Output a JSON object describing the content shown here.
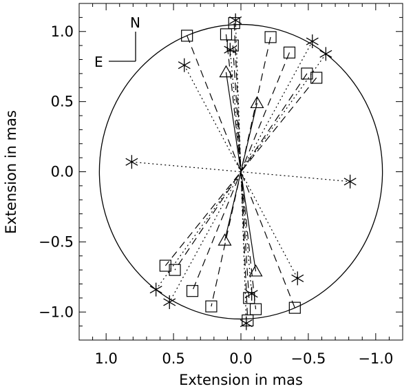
{
  "chart_data": {
    "type": "scatter",
    "xlabel": "Extension in mas",
    "ylabel": "Extension in mas",
    "xlim": [
      1.2,
      -1.2
    ],
    "ylim": [
      -1.2,
      1.2
    ],
    "x_ticks": [
      1.0,
      0.5,
      0.0,
      -0.5,
      -1.0
    ],
    "x_tick_labels": [
      "1.0",
      "0.5",
      "0.0",
      "−0.5",
      "−1.0"
    ],
    "y_ticks": [
      -1.0,
      -0.5,
      0.0,
      0.5,
      1.0
    ],
    "y_tick_labels": [
      "−1.0",
      "−0.5",
      "0.0",
      "0.5",
      "1.0"
    ],
    "grid": false,
    "reference_circle_radius": 1.05,
    "compass": {
      "north": "N",
      "east": "E"
    },
    "line_styles": {
      "asterisk": "dotted",
      "square": "dashed",
      "triangle": "solid"
    },
    "series": [
      {
        "marker": "asterisk",
        "points": [
          [
            0.04,
            1.08
          ],
          [
            -0.04,
            -1.08
          ],
          [
            0.08,
            0.87
          ],
          [
            -0.08,
            -0.87
          ],
          [
            0.42,
            0.76
          ],
          [
            -0.42,
            -0.76
          ],
          [
            0.81,
            0.07
          ],
          [
            -0.81,
            -0.07
          ],
          [
            -0.53,
            0.93
          ],
          [
            0.53,
            -0.93
          ],
          [
            -0.63,
            0.84
          ],
          [
            0.63,
            -0.84
          ]
        ]
      },
      {
        "marker": "square",
        "points": [
          [
            0.4,
            0.97
          ],
          [
            -0.4,
            -0.97
          ],
          [
            0.11,
            0.98
          ],
          [
            -0.11,
            -0.98
          ],
          [
            0.05,
            1.06
          ],
          [
            -0.05,
            -1.06
          ],
          [
            0.06,
            0.9
          ],
          [
            -0.06,
            -0.9
          ],
          [
            -0.22,
            0.96
          ],
          [
            0.22,
            -0.96
          ],
          [
            -0.36,
            0.85
          ],
          [
            0.36,
            -0.85
          ],
          [
            -0.49,
            0.7
          ],
          [
            0.49,
            -0.7
          ],
          [
            -0.56,
            0.67
          ],
          [
            0.56,
            -0.67
          ]
        ]
      },
      {
        "marker": "triangle",
        "points": [
          [
            0.11,
            0.71
          ],
          [
            -0.11,
            -0.71
          ],
          [
            -0.12,
            0.49
          ],
          [
            0.12,
            -0.49
          ]
        ]
      }
    ]
  }
}
